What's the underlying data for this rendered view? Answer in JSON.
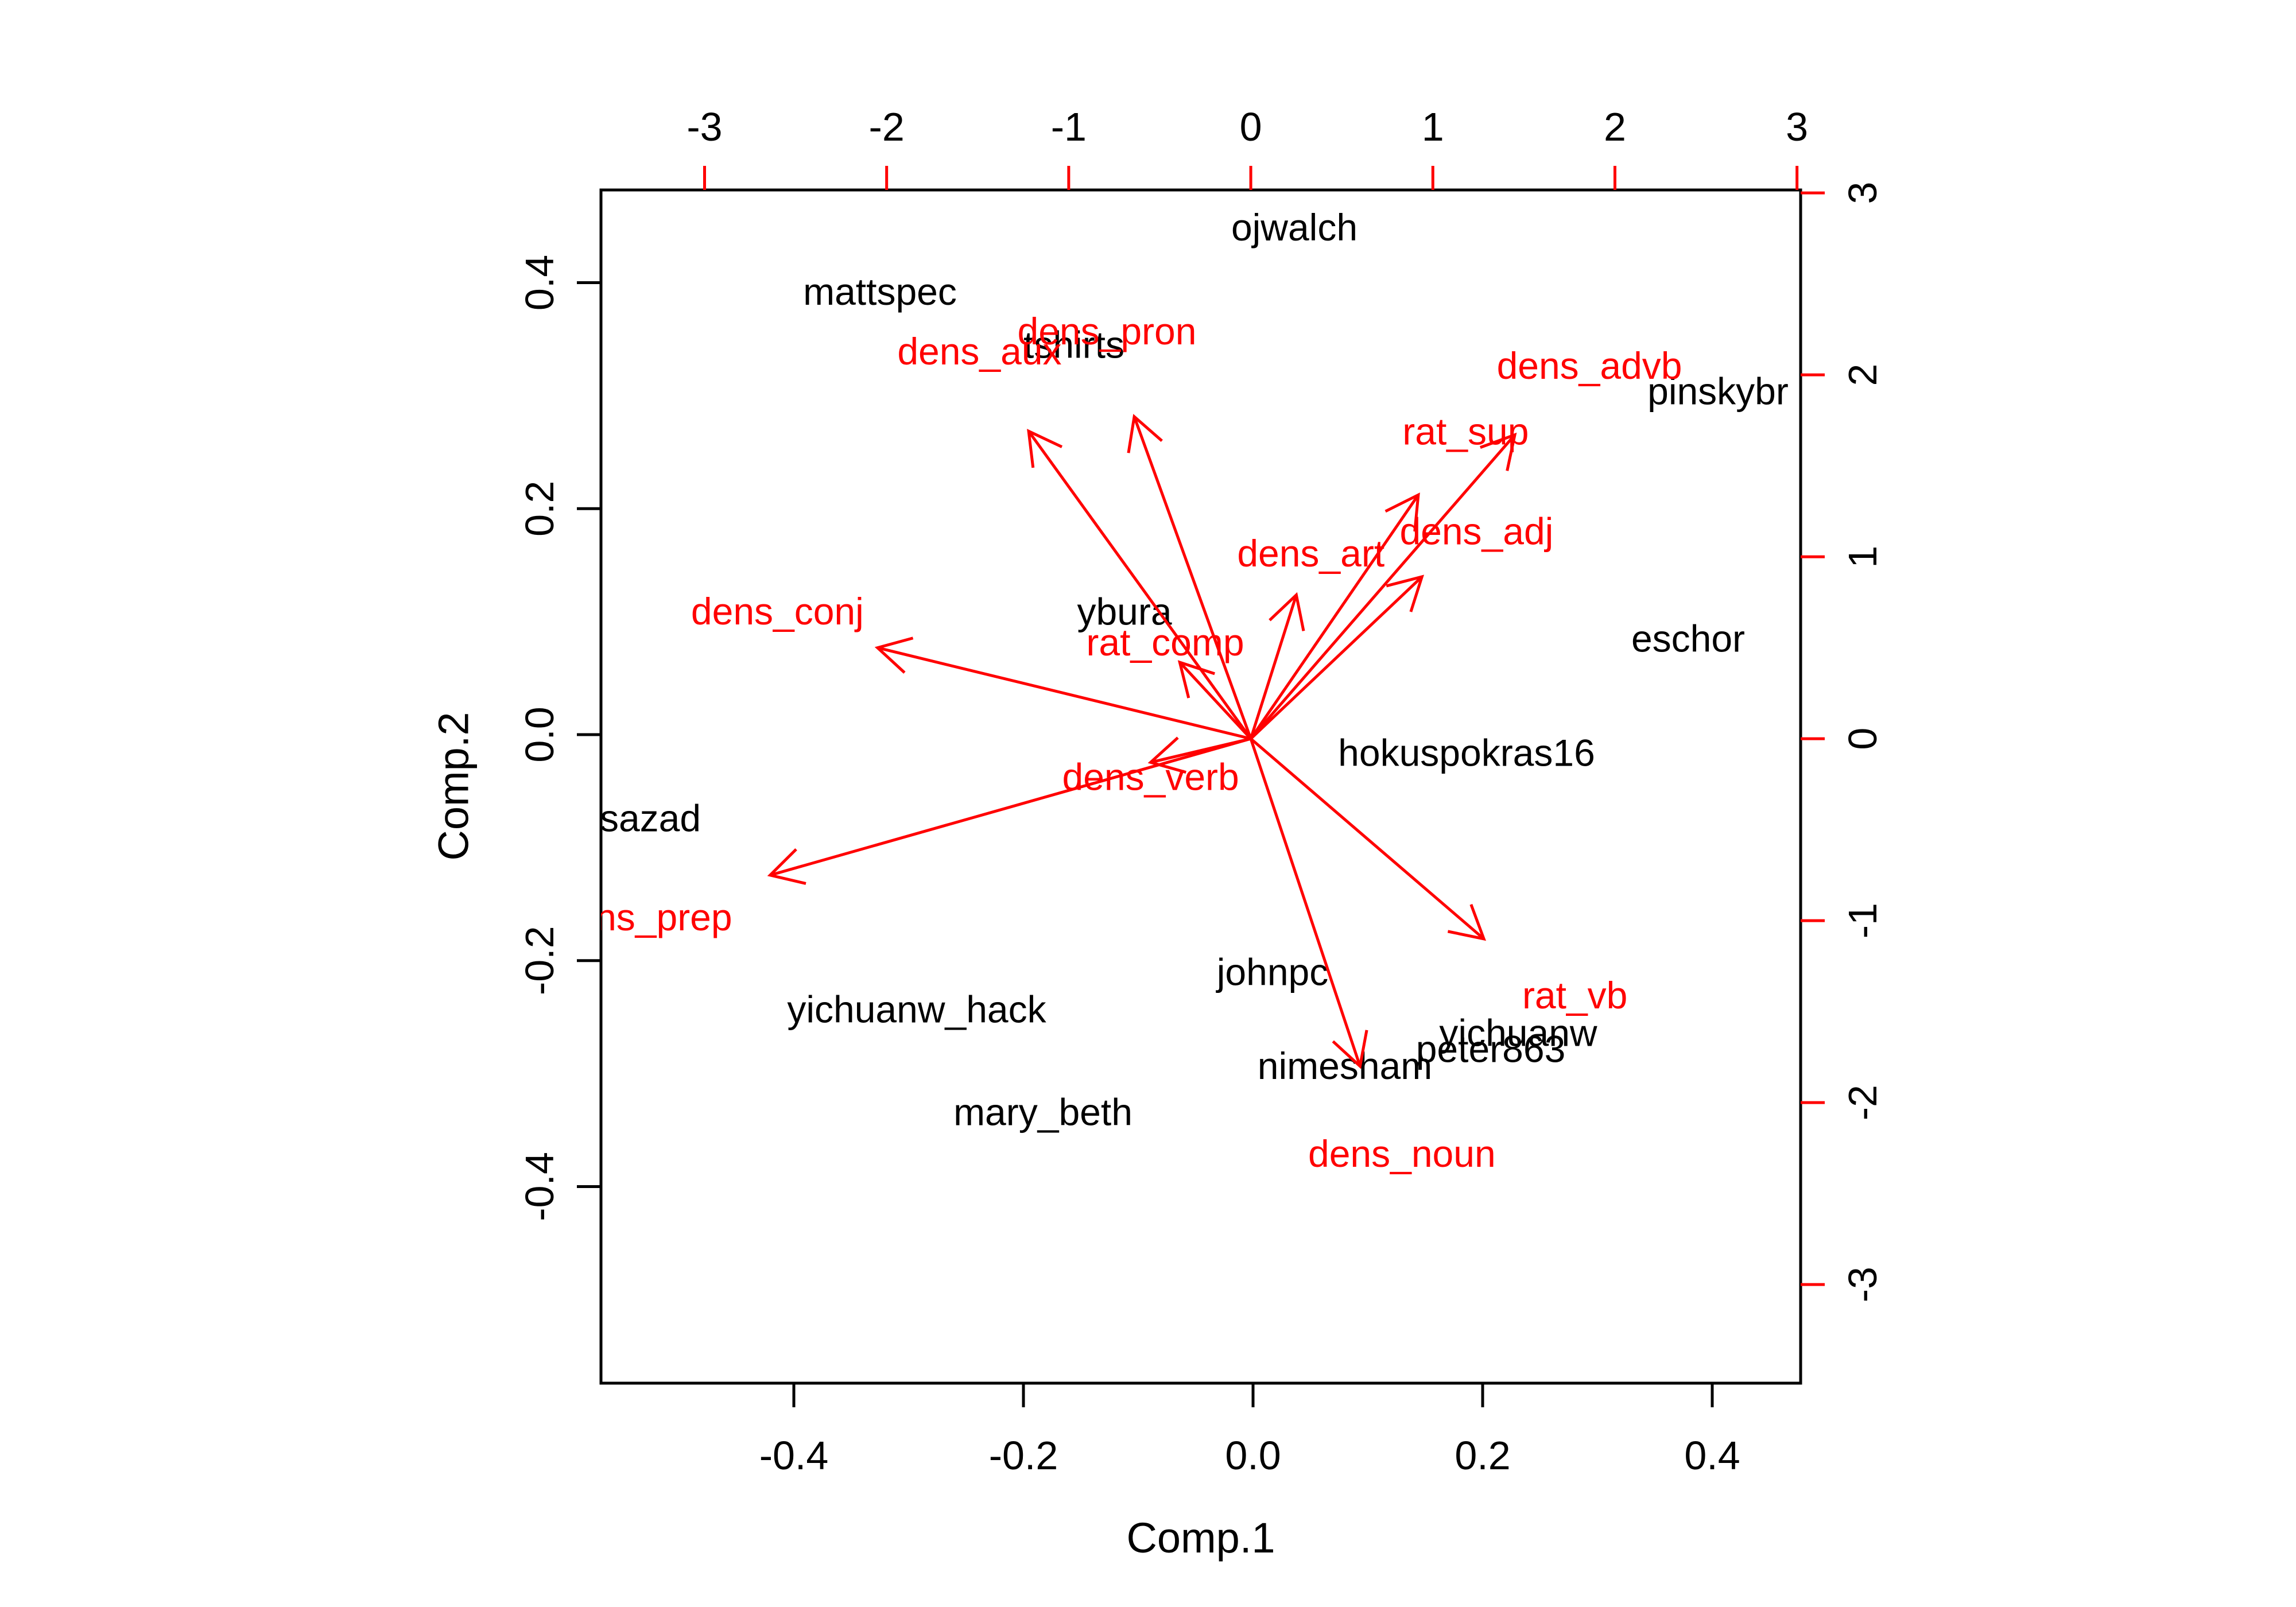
{
  "chart_data": {
    "type": "biplot",
    "title": "",
    "xlabel": "Comp.1",
    "ylabel": "Comp.2",
    "legend": null,
    "grid": false,
    "colors": {
      "background": "#FFFFFF",
      "observation_text": "#000000",
      "variable_arrows": "#FF0000",
      "primary_axis": "#000000",
      "secondary_axis_ticks": "#FF0000",
      "secondary_axis_labels": "#000000"
    },
    "bottom_axis": {
      "label": "Comp.1",
      "tick_labels": [
        "-0.4",
        "-0.2",
        "0.0",
        "0.2",
        "0.4"
      ],
      "tick_values": [
        -0.4,
        -0.2,
        0.0,
        0.2,
        0.4
      ],
      "range": [
        -0.568,
        0.477
      ]
    },
    "left_axis": {
      "label": "Comp.2",
      "tick_labels": [
        "-0.4",
        "-0.2",
        "0.0",
        "0.2",
        "0.4"
      ],
      "tick_values": [
        -0.4,
        -0.2,
        0.0,
        0.2,
        0.4
      ],
      "range": [
        -0.574,
        0.482
      ]
    },
    "top_axis": {
      "tick_labels": [
        "-3",
        "-2",
        "-1",
        "0",
        "1",
        "2",
        "3"
      ],
      "tick_values": [
        -3,
        -2,
        -1,
        0,
        1,
        2,
        3
      ],
      "range": [
        -3.569,
        3.02
      ]
    },
    "right_axis": {
      "tick_labels": [
        "3",
        "2",
        "1",
        "0",
        "-1",
        "-2",
        "-3"
      ],
      "tick_values": [
        3,
        2,
        1,
        0,
        -1,
        -2,
        -3
      ],
      "range": [
        -3.542,
        3.016
      ]
    },
    "observations": [
      {
        "label": "ojwalch",
        "x": 0.036,
        "y": 0.449
      },
      {
        "label": "mattspec",
        "x": -0.325,
        "y": 0.392
      },
      {
        "label": "tshirts",
        "x": -0.156,
        "y": 0.345
      },
      {
        "label": "pinskybr",
        "x": 0.405,
        "y": 0.304
      },
      {
        "label": "ybura",
        "x": -0.112,
        "y": 0.109
      },
      {
        "label": "eschor",
        "x": 0.379,
        "y": 0.085
      },
      {
        "label": "hokuspokras16",
        "x": 0.186,
        "y": -0.016
      },
      {
        "label": "sazad",
        "x": -0.525,
        "y": -0.074
      },
      {
        "label": "johnpc",
        "x": 0.017,
        "y": -0.21
      },
      {
        "label": "yichuanw_hack",
        "x": -0.293,
        "y": -0.243
      },
      {
        "label": "yichuanw",
        "x": 0.231,
        "y": -0.264
      },
      {
        "label": "peter863",
        "x": 0.207,
        "y": -0.278
      },
      {
        "label": "nimesham",
        "x": 0.08,
        "y": -0.293
      },
      {
        "label": "mary_beth",
        "x": -0.183,
        "y": -0.334
      }
    ],
    "variables": [
      {
        "label": "dens_pron",
        "x": -0.64,
        "y": 1.77,
        "label_x": -0.79,
        "label_y": 2.24
      },
      {
        "label": "dens_aux",
        "x": -1.22,
        "y": 1.69,
        "label_x": -1.49,
        "label_y": 2.13
      },
      {
        "label": "dens_advb",
        "x": 1.45,
        "y": 1.67,
        "label_x": 1.86,
        "label_y": 2.05
      },
      {
        "label": "rat_sup",
        "x": 0.92,
        "y": 1.34,
        "label_x": 1.18,
        "label_y": 1.69
      },
      {
        "label": "dens_adj",
        "x": 0.94,
        "y": 0.89,
        "label_x": 1.24,
        "label_y": 1.14
      },
      {
        "label": "dens_art",
        "x": 0.25,
        "y": 0.79,
        "label_x": 0.33,
        "label_y": 1.02
      },
      {
        "label": "rat_comp",
        "x": -0.39,
        "y": 0.42,
        "label_x": -0.47,
        "label_y": 0.53
      },
      {
        "label": "dens_conj",
        "x": -2.05,
        "y": 0.5,
        "label_x": -2.6,
        "label_y": 0.7
      },
      {
        "label": "dens_verb",
        "x": -0.55,
        "y": -0.13,
        "label_x": -0.55,
        "label_y": -0.21
      },
      {
        "label": "dens_prep",
        "x": -2.64,
        "y": -0.75,
        "label_x": -3.34,
        "label_y": -0.98
      },
      {
        "label": "rat_vb",
        "x": 1.28,
        "y": -1.1,
        "label_x": 1.78,
        "label_y": -1.41
      },
      {
        "label": "dens_noun",
        "x": 0.6,
        "y": -1.8,
        "label_x": 0.83,
        "label_y": -2.28
      }
    ]
  }
}
